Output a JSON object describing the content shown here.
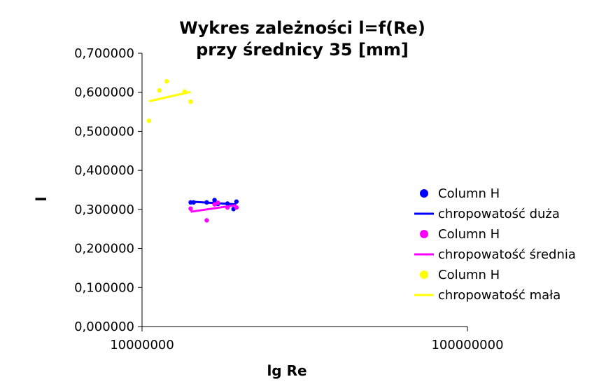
{
  "chart_data": {
    "type": "scatter",
    "title": [
      "Wykres zależności l=f(Re)",
      "przy średnicy 35 [mm]"
    ],
    "xlabel": "lg Re",
    "ylabel": "l",
    "xscale": "log",
    "xlim": [
      10000000,
      100000000
    ],
    "ylim": [
      0,
      0.7
    ],
    "xticks": [
      10000000,
      100000000
    ],
    "xtick_labels": [
      "10000000",
      "100000000"
    ],
    "yticks": [
      0,
      0.1,
      0.2,
      0.3,
      0.4,
      0.5,
      0.6,
      0.7
    ],
    "ytick_labels": [
      "0,000000",
      "0,100000",
      "0,200000",
      "0,300000",
      "0,400000",
      "0,500000",
      "0,600000",
      "0,700000"
    ],
    "grid": false,
    "legend_position": "right",
    "series": [
      {
        "name": "Column H",
        "kind": "points",
        "color": "#0000ff",
        "x": [
          14100000,
          14400000,
          15800000,
          16700000,
          16700000,
          17100000,
          18300000,
          19100000,
          19500000
        ],
        "y": [
          0.318,
          0.318,
          0.318,
          0.324,
          0.318,
          0.314,
          0.315,
          0.301,
          0.32
        ]
      },
      {
        "name": "chropowatość duża",
        "kind": "trendline",
        "color": "#0000ff",
        "x": [
          14100000,
          19500000
        ],
        "y": [
          0.32,
          0.313
        ]
      },
      {
        "name": "Column H",
        "kind": "points",
        "color": "#ff00ff",
        "x": [
          14100000,
          15800000,
          16700000,
          17100000,
          18300000,
          19500000
        ],
        "y": [
          0.302,
          0.272,
          0.313,
          0.317,
          0.305,
          0.305
        ]
      },
      {
        "name": "chropowatość średnia",
        "kind": "trendline",
        "color": "#ff00ff",
        "x": [
          14100000,
          19500000
        ],
        "y": [
          0.294,
          0.311
        ]
      },
      {
        "name": "Column H",
        "kind": "points",
        "color": "#ffff00",
        "x": [
          10500000,
          11300000,
          11900000,
          13500000,
          14100000
        ],
        "y": [
          0.527,
          0.605,
          0.628,
          0.602,
          0.576
        ]
      },
      {
        "name": "chropowatość mała",
        "kind": "trendline",
        "color": "#ffff00",
        "x": [
          10500000,
          14100000
        ],
        "y": [
          0.577,
          0.601
        ]
      }
    ]
  }
}
